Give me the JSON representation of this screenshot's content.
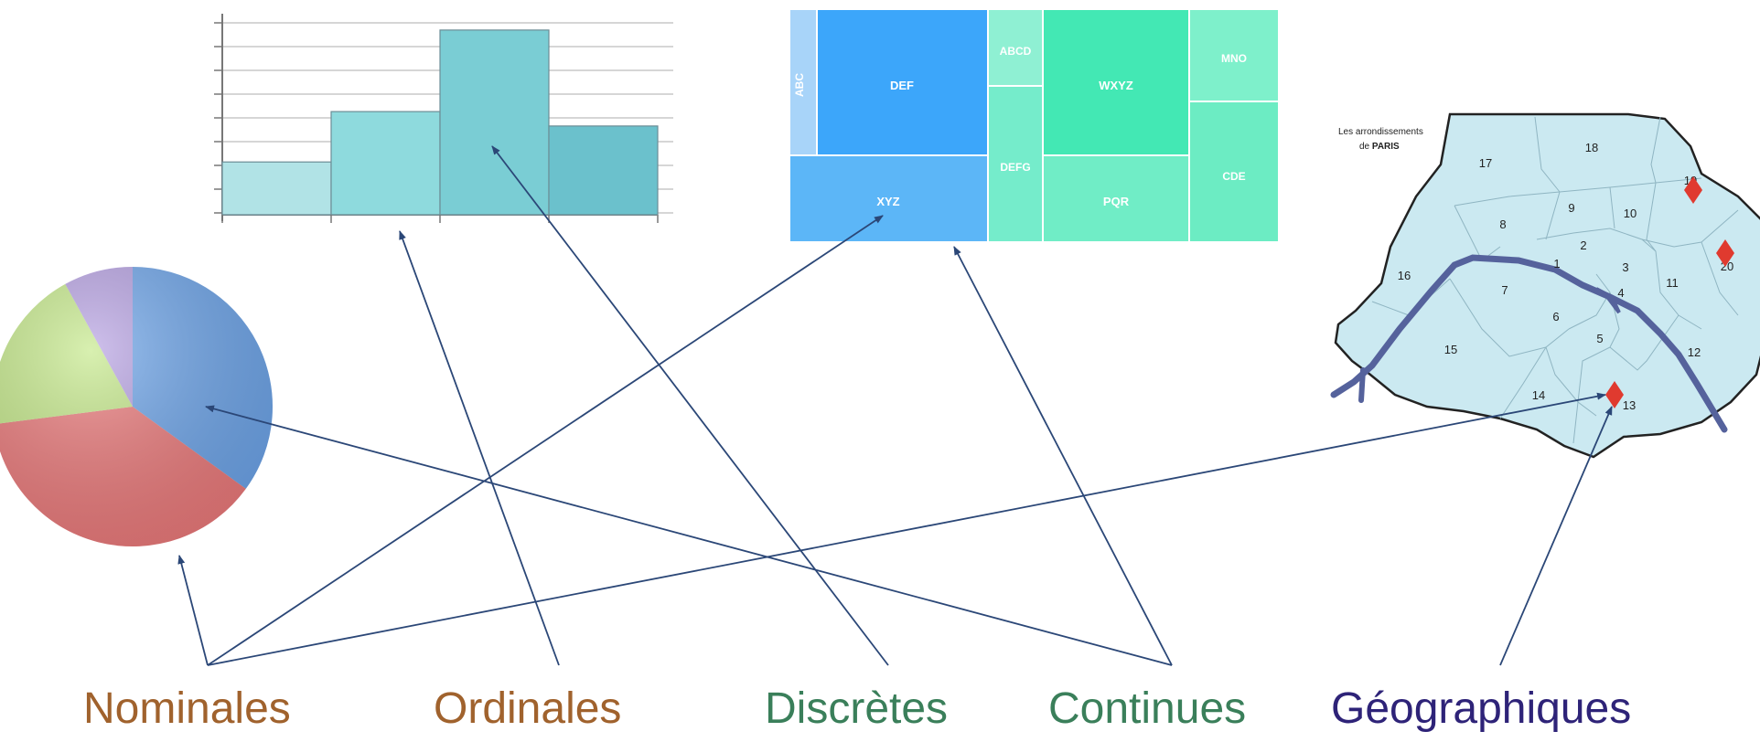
{
  "labels": [
    {
      "text": "Nominales",
      "color": "#a0622d"
    },
    {
      "text": "Ordinales",
      "color": "#a0622d"
    },
    {
      "text": "Discrètes",
      "color": "#3a7f5a"
    },
    {
      "text": "Continues",
      "color": "#3a7f5a"
    },
    {
      "text": "Géographiques",
      "color": "#2e2378"
    }
  ],
  "arrow_color": "#2b4777",
  "histogram": {
    "values": [
      2.2,
      4.3,
      7.7,
      3.7
    ],
    "ymax": 8,
    "colors": [
      "#b1e3e6",
      "#8edadd",
      "#7acdd4",
      "#6bc1cc"
    ]
  },
  "pie": {
    "slices": [
      {
        "share": 0.35,
        "color": "#6aa3ea"
      },
      {
        "share": 0.38,
        "color": "#ec7778"
      },
      {
        "share": 0.19,
        "color": "#c3e886"
      },
      {
        "share": 0.08,
        "color": "#b59fe2"
      }
    ]
  },
  "treemap": {
    "cells": [
      {
        "label": "ABC",
        "color": "#a8d4f9"
      },
      {
        "label": "DEF",
        "color": "#3ca6fa"
      },
      {
        "label": "XYZ",
        "color": "#5cb6f7"
      },
      {
        "label": "ABCD",
        "color": "#8ff0d3"
      },
      {
        "label": "DEFG",
        "color": "#75eccb"
      },
      {
        "label": "WXYZ",
        "color": "#43e8b4"
      },
      {
        "label": "PQR",
        "color": "#70edc6"
      },
      {
        "label": "MNO",
        "color": "#7ef0cb"
      },
      {
        "label": "CDE",
        "color": "#6cecc3"
      }
    ]
  },
  "map": {
    "title_line1": "Les arrondissements",
    "title_line2_prefix": "de ",
    "title_line2_bold": "PARIS",
    "fill": "#cbe9f1",
    "river_color": "#55629c",
    "marker_color": "#e03a2f",
    "districts": [
      "1",
      "2",
      "3",
      "4",
      "5",
      "6",
      "7",
      "8",
      "9",
      "10",
      "11",
      "12",
      "13",
      "14",
      "15",
      "16",
      "17",
      "18",
      "19",
      "20"
    ]
  }
}
